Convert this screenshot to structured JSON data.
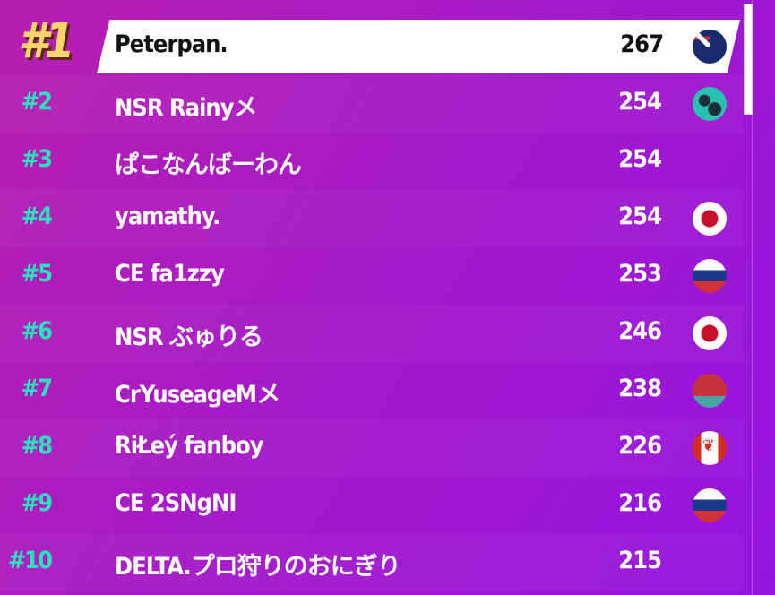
{
  "leaderboard": [
    {
      "rank": "#1",
      "name": "Peterpan.",
      "score": "267",
      "flag": "australia"
    },
    {
      "rank": "#2",
      "name": "NSR Rainyメ",
      "score": "254",
      "flag": "globe"
    },
    {
      "rank": "#3",
      "name": "ぱこなんばーわん",
      "score": "254",
      "flag": ""
    },
    {
      "rank": "#4",
      "name": "yamathy.",
      "score": "254",
      "flag": "japan"
    },
    {
      "rank": "#5",
      "name": "CE fa1zzy",
      "score": "253",
      "flag": "russia"
    },
    {
      "rank": "#6",
      "name": "NSR ぶゅりる",
      "score": "246",
      "flag": "japan"
    },
    {
      "rank": "#7",
      "name": "CrYuseageMメ",
      "score": "238",
      "flag": "belarus"
    },
    {
      "rank": "#8",
      "name": "RiŁeý fanboy",
      "score": "226",
      "flag": "canada"
    },
    {
      "rank": "#9",
      "name": "CE 2SNgNI",
      "score": "216",
      "flag": "russia"
    },
    {
      "rank": "#10",
      "name": "DELTA.プロ狩りのおにぎり",
      "score": "215",
      "flag": ""
    }
  ],
  "colors": {
    "rank": "#29e3bf",
    "gold": "#ffd36b",
    "highlight": "#ffffff"
  }
}
